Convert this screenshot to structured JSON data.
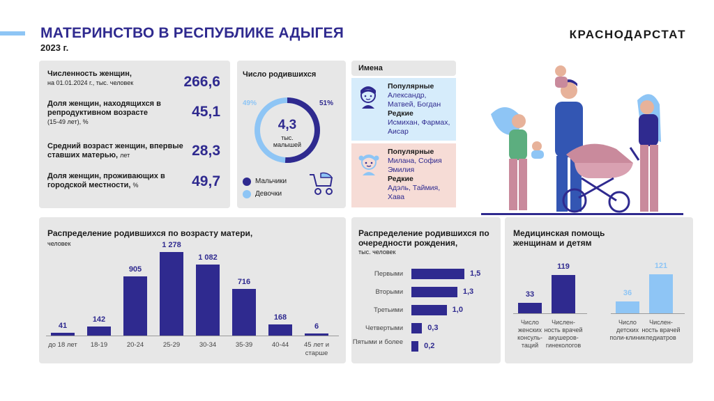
{
  "header": {
    "title": "МАТЕРИНСТВО В РЕСПУБЛИКЕ АДЫГЕЯ",
    "year": "2023 г.",
    "brand": "КРАСНОДАРСТАТ"
  },
  "colors": {
    "accent": "#2f2a8f",
    "light_blue": "#8ec5f5",
    "card_bg": "#e7e7e7",
    "boys_box": "#d6ecfb",
    "girls_box": "#f6dcd6"
  },
  "stats": [
    {
      "label_bold": "Численность женщин,",
      "label_rest": "на 01.01.2024 г., тыс. человек",
      "value": "266,6"
    },
    {
      "label_bold": "Доля женщин, находящихся в репродуктивном возрасте",
      "label_rest": "(15-49 лет), %",
      "value": "45,1"
    },
    {
      "label_bold": "Средний возраст женщин, впервые ставших матерью,",
      "label_rest": "лет",
      "value": "28,3"
    },
    {
      "label_bold": "Доля женщин, проживающих в городской местности,",
      "label_rest": "%",
      "value": "49,7"
    }
  ],
  "births": {
    "title": "Число родившихся",
    "total": "4,3",
    "unit_line1": "тыс.",
    "unit_line2": "малышей",
    "girls_pct": "49%",
    "boys_pct": "51%",
    "legend_boys": "Мальчики",
    "legend_girls": "Девочки",
    "boys_share": 51,
    "girls_share": 49
  },
  "names": {
    "title": "Имена",
    "boys": {
      "popular_label": "Популярные",
      "popular": "Александр, Матвей, Богдан",
      "rare_label": "Редкие",
      "rare": "Исмихан, Фармах, Аисар"
    },
    "girls": {
      "popular_label": "Популярные",
      "popular": "Милана, София Эмилия",
      "rare_label": "Редкие",
      "rare": "Адэль, Таймия, Хава"
    }
  },
  "chart_data": [
    {
      "type": "bar",
      "title": "Распределение родившихся по возрасту матери,",
      "subtitle": "человек",
      "categories": [
        "до 18 лет",
        "18-19",
        "20-24",
        "25-29",
        "30-34",
        "35-39",
        "40-44",
        "45 лет и старше"
      ],
      "values": [
        41,
        142,
        905,
        1278,
        1082,
        716,
        168,
        6
      ],
      "value_labels": [
        "41",
        "142",
        "905",
        "1 278",
        "1 082",
        "716",
        "168",
        "6"
      ],
      "ylim": [
        0,
        1278
      ]
    },
    {
      "type": "bar",
      "orientation": "horizontal",
      "title": "Распределение родившихся по очередности рождения,",
      "subtitle": "тыс. человек",
      "categories": [
        "Первыми",
        "Вторыми",
        "Третьими",
        "Четвертыми",
        "Пятыми и более"
      ],
      "values": [
        1.5,
        1.3,
        1.0,
        0.3,
        0.2
      ],
      "value_labels": [
        "1,5",
        "1,3",
        "1,0",
        "0,3",
        "0,2"
      ]
    },
    {
      "type": "bar",
      "title": "Медицинская помощь женщинам и детям",
      "categories": [
        "Число женских консуль-таций",
        "Числен-ность врачей акушеров-гинекологов",
        "Число детских поли-клиник",
        "Числен-ность врачей педиатров"
      ],
      "values": [
        33,
        119,
        36,
        121
      ],
      "value_labels": [
        "33",
        "119",
        "36",
        "121"
      ],
      "colors": [
        "#2f2a8f",
        "#2f2a8f",
        "#8ec5f5",
        "#8ec5f5"
      ]
    }
  ]
}
